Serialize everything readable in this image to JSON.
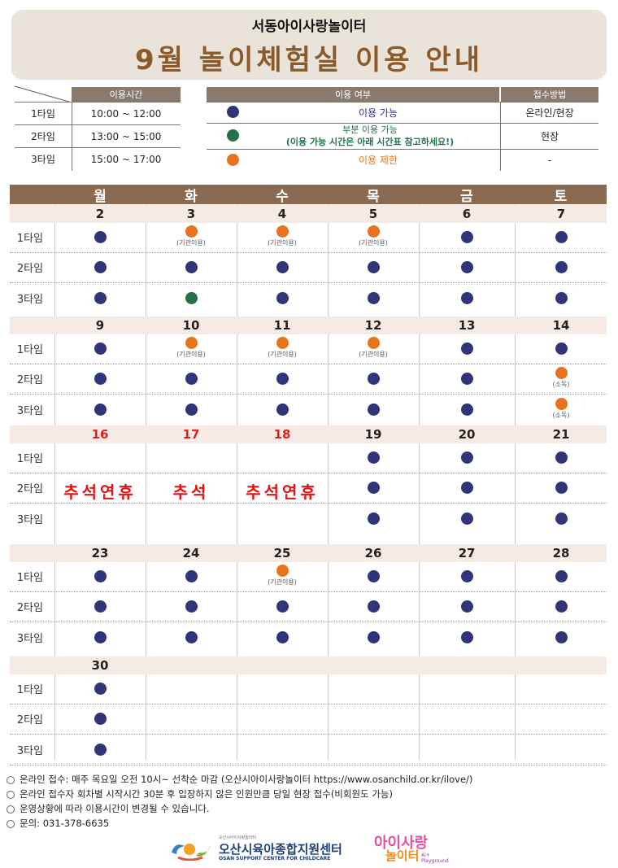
{
  "header": {
    "subtitle": "서동아이사랑놀이터",
    "title": "9월 놀이체험실 이용 안내"
  },
  "time_table": {
    "header": "이용시간",
    "rows": [
      {
        "label": "1타임",
        "time": "10:00 ~ 12:00"
      },
      {
        "label": "2타임",
        "time": "13:00 ~ 15:00"
      },
      {
        "label": "3타임",
        "time": "15:00 ~ 17:00"
      }
    ]
  },
  "status_table": {
    "header_status": "이용 여부",
    "header_method": "접수방법",
    "rows": [
      {
        "color": "#2f3578",
        "text": "이용 가능",
        "method": "온라인/현장"
      },
      {
        "color": "#247049",
        "text": "부분 이용 가능",
        "text2": "(이용 가능 시간은 아래 시간표 참고하세요!)",
        "method": "현장"
      },
      {
        "color": "#e8731e",
        "text": "이용 제한",
        "method": "-"
      }
    ]
  },
  "days": [
    "월",
    "화",
    "수",
    "목",
    "금",
    "토"
  ],
  "slot_labels": [
    "1타임",
    "2타임",
    "3타임"
  ],
  "notes": {
    "group": "(기관이용)",
    "disinfect": "(소독)"
  },
  "weeks": [
    {
      "dates": [
        "2",
        "3",
        "4",
        "5",
        "6",
        "7"
      ]
    },
    {
      "dates": [
        "9",
        "10",
        "11",
        "12",
        "13",
        "14"
      ]
    },
    {
      "dates": [
        "16",
        "17",
        "18",
        "19",
        "20",
        "21"
      ]
    },
    {
      "dates": [
        "23",
        "24",
        "25",
        "26",
        "27",
        "28"
      ]
    },
    {
      "dates": [
        "30",
        "",
        "",
        "",
        "",
        ""
      ]
    }
  ],
  "holidays": [
    "추석연휴",
    "추석",
    "추석연휴"
  ],
  "footer": [
    "온라인 접수: 매주 목요일 오전 10시~ 선착순 마감 (오산시아이사랑놀이터 https://www.osanchild.or.kr/ilove/)",
    "온라인 접수자 회차별 시작시간 30분 후 입장하지 않은 인원만큼 당일 현장 접수(비회원도 가능)",
    "운영상황에 따라 이용시간이 변경될 수 있습니다.",
    "문의: 031-378-6635"
  ],
  "logos": {
    "center_name": "오산시육아종합지원센터",
    "center_name_en": "OSAN SUPPORT CENTER FOR CHILDCARE",
    "center_small": "오산시아이사랑놀이터",
    "playground": "아이사랑",
    "playground2": "놀이터",
    "playground_small": "Ai+ Playground"
  },
  "colors": {
    "available": "#2f3578",
    "partial": "#247049",
    "restricted": "#e8731e",
    "holiday": "#e01414",
    "header_brown": "#8a6a50"
  }
}
